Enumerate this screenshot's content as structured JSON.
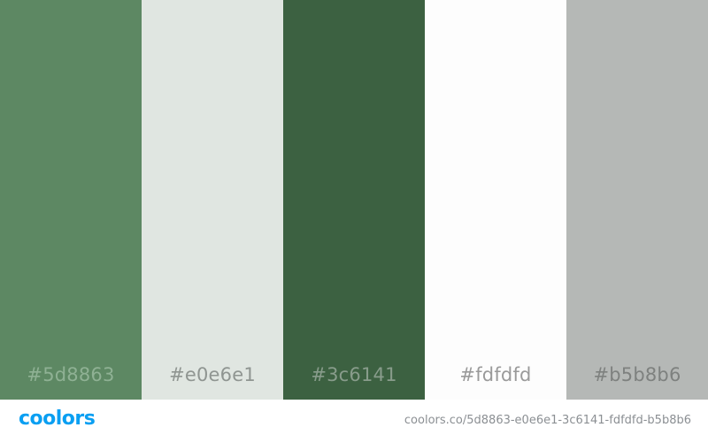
{
  "swatches": [
    {
      "hex": "#5d8863",
      "label": "#5d8863",
      "label_color": "#8fb194"
    },
    {
      "hex": "#e0e6e1",
      "label": "#e0e6e1",
      "label_color": "#8f9591"
    },
    {
      "hex": "#3c6141",
      "label": "#3c6141",
      "label_color": "#889c8b"
    },
    {
      "hex": "#fdfdfd",
      "label": "#fdfdfd",
      "label_color": "#9a9a9a"
    },
    {
      "hex": "#b5b8b6",
      "label": "#b5b8b6",
      "label_color": "#7e817f"
    }
  ],
  "footer": {
    "logo": "coolors",
    "url": "coolors.co/5d8863-e0e6e1-3c6141-fdfdfd-b5b8b6"
  },
  "colors": {
    "brand": "#0a9ff2",
    "url_text": "#8b8f93"
  }
}
